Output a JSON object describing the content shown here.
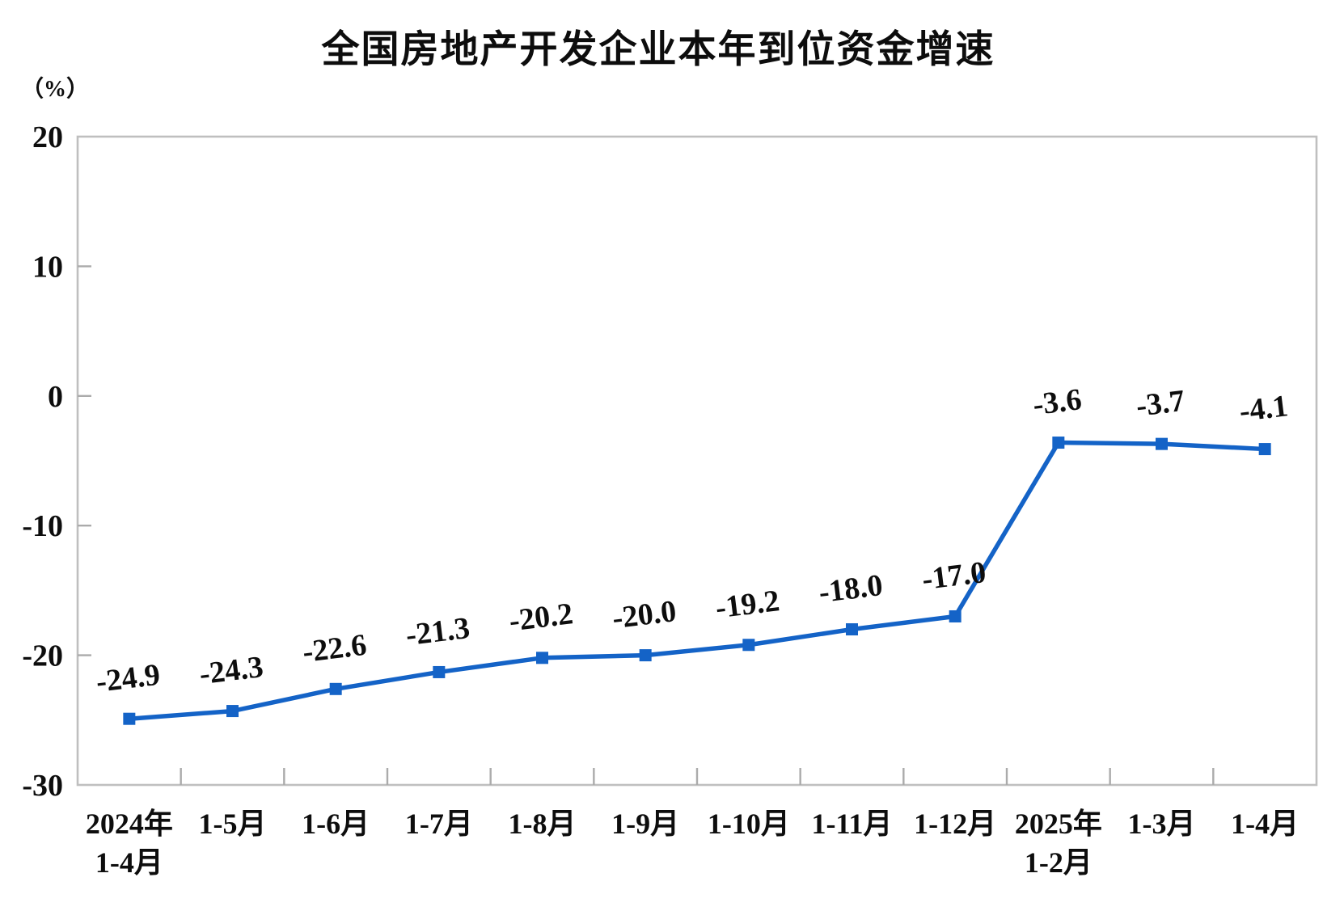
{
  "chart": {
    "title": "全国房地产开发企业本年到位资金增速",
    "unit_label": "（%）"
  },
  "chart_data": {
    "type": "line",
    "title": "全国房地产开发企业本年到位资金增速",
    "ylabel": "（%）",
    "xlabel": "",
    "categories": [
      [
        "2024年",
        "1-4月"
      ],
      [
        "1-5月"
      ],
      [
        "1-6月"
      ],
      [
        "1-7月"
      ],
      [
        "1-8月"
      ],
      [
        "1-9月"
      ],
      [
        "1-10月"
      ],
      [
        "1-11月"
      ],
      [
        "1-12月"
      ],
      [
        "2025年",
        "1-2月"
      ],
      [
        "1-3月"
      ],
      [
        "1-4月"
      ]
    ],
    "values": [
      -24.9,
      -24.3,
      -22.6,
      -21.3,
      -20.2,
      -20.0,
      -19.2,
      -18.0,
      -17.0,
      -3.6,
      -3.7,
      -4.1
    ],
    "data_labels": [
      "-24.9",
      "-24.3",
      "-22.6",
      "-21.3",
      "-20.2",
      "-20.0",
      "-19.2",
      "-18.0",
      "-17.0",
      "-3.6",
      "-3.7",
      "-4.1"
    ],
    "y_ticks": [
      20,
      10,
      0,
      -10,
      -20,
      -30
    ],
    "ylim": [
      -30,
      20
    ],
    "grid": false,
    "legend": "none",
    "line_color": "#1463C7",
    "marker": "square",
    "axis_color": "#BFBFBF",
    "tick_color": "#ABABAB",
    "text_color": "#0d0d0d"
  }
}
